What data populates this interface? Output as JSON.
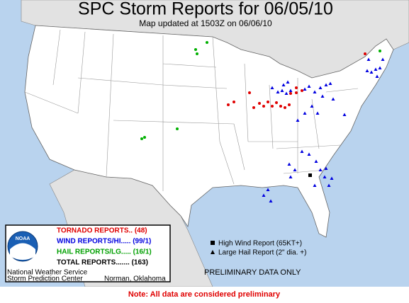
{
  "header": {
    "title": "SPC Storm Reports for 06/05/10",
    "subtitle": "Map updated at 1503Z on 06/06/10"
  },
  "legend": {
    "logo": "NOAA",
    "items": [
      "TORNADO REPORTS.. (48)",
      "WIND REPORTS/HI..... (99/1)",
      "HAIL REPORTS/LG..... (16/1)",
      "TOTAL REPORTS....... (163)"
    ],
    "agency": "National Weather Service",
    "center": "Storm Prediction Center",
    "location": "Norman, Oklahoma"
  },
  "key": [
    "High Wind Report (65KT+)",
    "Large Hail Report (2\" dia. +)"
  ],
  "status": "PRELIMINARY DATA ONLY",
  "footer": "Note: All data are considered preliminary"
}
